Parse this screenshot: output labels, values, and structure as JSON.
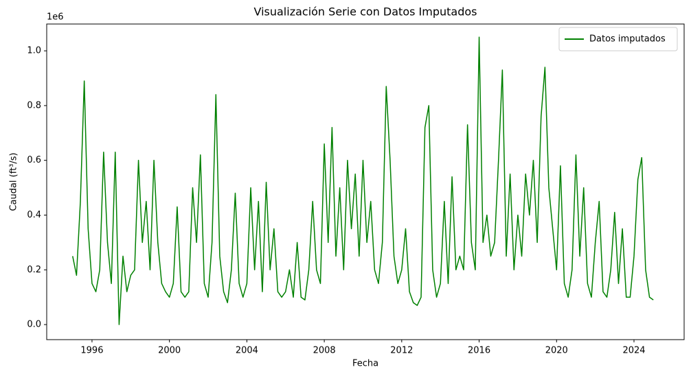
{
  "chart_data": {
    "type": "line",
    "title": "Visualización Serie con Datos Imputados",
    "xlabel": "Fecha",
    "ylabel": "Caudal (ft³/s)",
    "y_offset_label": "1e6",
    "legend": "upper right",
    "x": [
      1995.0,
      1995.2,
      1995.4,
      1995.6,
      1995.8,
      1996.0,
      1996.2,
      1996.4,
      1996.6,
      1996.8,
      1997.0,
      1997.2,
      1997.4,
      1997.6,
      1997.8,
      1998.0,
      1998.2,
      1998.4,
      1998.6,
      1998.8,
      1999.0,
      1999.2,
      1999.4,
      1999.6,
      1999.8,
      2000.0,
      2000.2,
      2000.4,
      2000.6,
      2000.8,
      2001.0,
      2001.2,
      2001.4,
      2001.6,
      2001.8,
      2002.0,
      2002.2,
      2002.4,
      2002.6,
      2002.8,
      2003.0,
      2003.2,
      2003.4,
      2003.6,
      2003.8,
      2004.0,
      2004.2,
      2004.4,
      2004.6,
      2004.8,
      2005.0,
      2005.2,
      2005.4,
      2005.6,
      2005.8,
      2006.0,
      2006.2,
      2006.4,
      2006.6,
      2006.8,
      2007.0,
      2007.2,
      2007.4,
      2007.6,
      2007.8,
      2008.0,
      2008.2,
      2008.4,
      2008.6,
      2008.8,
      2009.0,
      2009.2,
      2009.4,
      2009.6,
      2009.8,
      2010.0,
      2010.2,
      2010.4,
      2010.6,
      2010.8,
      2011.0,
      2011.2,
      2011.4,
      2011.6,
      2011.8,
      2012.0,
      2012.2,
      2012.4,
      2012.6,
      2012.8,
      2013.0,
      2013.2,
      2013.4,
      2013.6,
      2013.8,
      2014.0,
      2014.2,
      2014.4,
      2014.6,
      2014.8,
      2015.0,
      2015.2,
      2015.4,
      2015.6,
      2015.8,
      2016.0,
      2016.2,
      2016.4,
      2016.6,
      2016.8,
      2017.0,
      2017.2,
      2017.4,
      2017.6,
      2017.8,
      2018.0,
      2018.2,
      2018.4,
      2018.6,
      2018.8,
      2019.0,
      2019.2,
      2019.4,
      2019.6,
      2019.8,
      2020.0,
      2020.2,
      2020.4,
      2020.6,
      2020.8,
      2021.0,
      2021.2,
      2021.4,
      2021.6,
      2021.8,
      2022.0,
      2022.2,
      2022.4,
      2022.6,
      2022.8,
      2023.0,
      2023.2,
      2023.4,
      2023.6,
      2023.8,
      2024.0,
      2024.2,
      2024.4,
      2024.6,
      2024.8,
      2025.0
    ],
    "series": [
      {
        "name": "Datos imputados",
        "color": "#008000",
        "values": [
          0.25,
          0.18,
          0.45,
          0.89,
          0.35,
          0.15,
          0.12,
          0.2,
          0.63,
          0.3,
          0.15,
          0.63,
          0.0,
          0.25,
          0.12,
          0.18,
          0.2,
          0.6,
          0.3,
          0.45,
          0.2,
          0.6,
          0.3,
          0.15,
          0.12,
          0.1,
          0.15,
          0.43,
          0.12,
          0.1,
          0.12,
          0.5,
          0.3,
          0.62,
          0.15,
          0.1,
          0.3,
          0.84,
          0.25,
          0.12,
          0.08,
          0.2,
          0.48,
          0.15,
          0.1,
          0.15,
          0.5,
          0.2,
          0.45,
          0.12,
          0.52,
          0.2,
          0.35,
          0.12,
          0.1,
          0.12,
          0.2,
          0.1,
          0.3,
          0.1,
          0.09,
          0.2,
          0.45,
          0.2,
          0.15,
          0.66,
          0.3,
          0.72,
          0.25,
          0.5,
          0.2,
          0.6,
          0.35,
          0.55,
          0.25,
          0.6,
          0.3,
          0.45,
          0.2,
          0.15,
          0.3,
          0.87,
          0.6,
          0.25,
          0.15,
          0.2,
          0.35,
          0.12,
          0.08,
          0.07,
          0.1,
          0.72,
          0.8,
          0.2,
          0.1,
          0.15,
          0.45,
          0.15,
          0.54,
          0.2,
          0.25,
          0.2,
          0.73,
          0.3,
          0.2,
          1.05,
          0.3,
          0.4,
          0.25,
          0.3,
          0.6,
          0.93,
          0.25,
          0.55,
          0.2,
          0.4,
          0.25,
          0.55,
          0.4,
          0.6,
          0.3,
          0.76,
          0.94,
          0.5,
          0.35,
          0.2,
          0.58,
          0.15,
          0.1,
          0.2,
          0.62,
          0.25,
          0.5,
          0.15,
          0.1,
          0.3,
          0.45,
          0.12,
          0.1,
          0.2,
          0.41,
          0.15,
          0.35,
          0.1,
          0.1,
          0.25,
          0.53,
          0.61,
          0.2,
          0.1,
          0.09
        ]
      }
    ],
    "xlim": [
      1993.66,
      2026.59
    ],
    "xticks": [
      1996,
      2000,
      2004,
      2008,
      2012,
      2016,
      2020,
      2024
    ],
    "ylim": [
      -0.055,
      1.098
    ],
    "yticks": [
      {
        "value": 0,
        "label": "0.0"
      },
      0.2,
      0.4,
      0.6,
      0.8,
      {
        "value": 1,
        "label": "1.0"
      }
    ],
    "grid": false
  }
}
